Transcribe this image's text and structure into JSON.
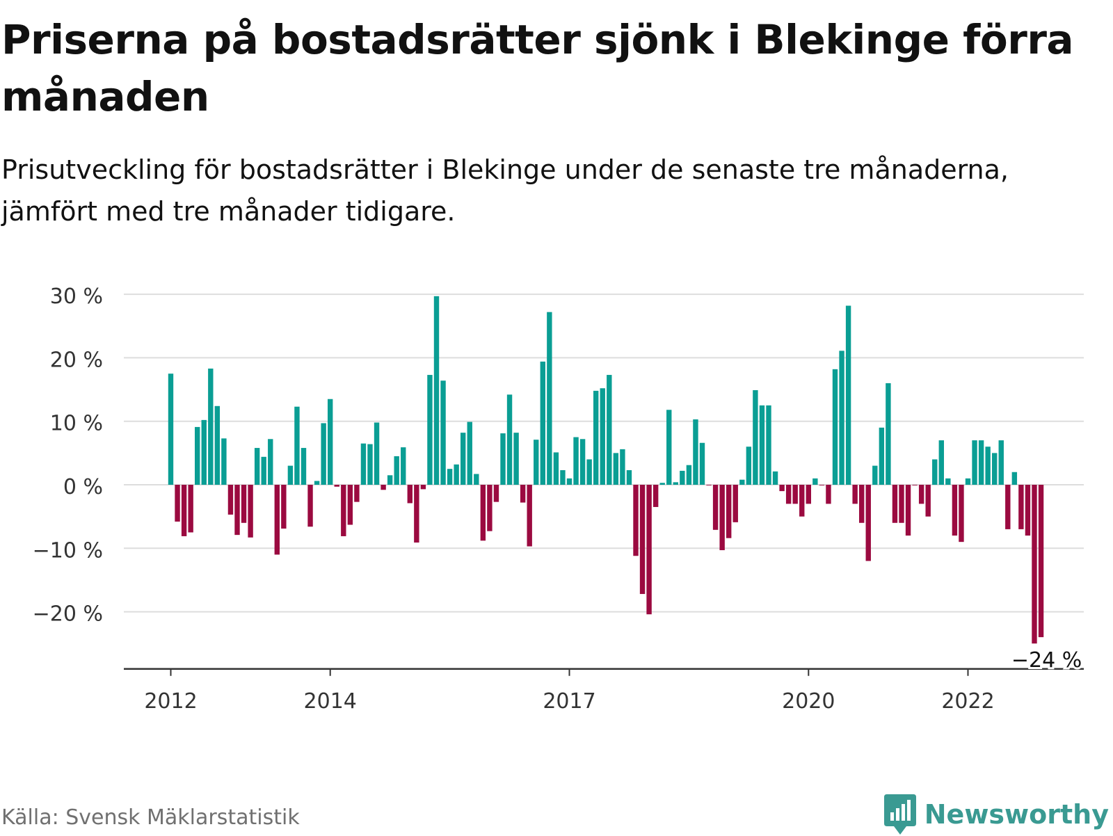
{
  "header": {
    "title": "Priserna på bostadsrätter sjönk i Blekinge förra månaden",
    "subtitle": "Prisutveckling för bostadsrätter i Blekinge under de senaste tre månaderna, jämfört med tre månader tidigare."
  },
  "footer": {
    "source": "Källa: Svensk Mäklarstatistik",
    "brand": "Newsworthy",
    "brand_icon": "newsworthy-logo-icon"
  },
  "colors": {
    "positive": "#0a9e94",
    "negative": "#9b0a40",
    "grid": "#dddddd",
    "axis": "#333333",
    "brand": "#3a9a92"
  },
  "chart_data": {
    "type": "bar",
    "unit": "%",
    "ylim": [
      -29,
      31
    ],
    "yticks": [
      30,
      20,
      10,
      0,
      -10,
      -20
    ],
    "ytick_labels": [
      "30 %",
      "20 %",
      "10 %",
      "0 %",
      "−10 %",
      "−20 %"
    ],
    "xtick_labels": [
      "2012",
      "2014",
      "2017",
      "2020",
      "2022"
    ],
    "xtick_bar_index": [
      0,
      24,
      60,
      96,
      120
    ],
    "grid": true,
    "annotation": {
      "text": "−24 %",
      "bar_index": 131
    },
    "values": [
      17.5,
      -5.8,
      -8.1,
      -7.5,
      9.1,
      10.2,
      18.3,
      12.4,
      7.3,
      -4.7,
      -7.9,
      -6.0,
      -8.3,
      5.8,
      4.4,
      7.2,
      -11.0,
      -6.9,
      3.0,
      12.3,
      5.8,
      -6.6,
      0.6,
      9.7,
      13.5,
      -0.3,
      -8.1,
      -6.3,
      -2.7,
      6.5,
      6.4,
      9.8,
      -0.8,
      1.5,
      4.5,
      5.9,
      -2.9,
      -9.1,
      -0.7,
      17.3,
      29.7,
      16.4,
      2.5,
      3.2,
      8.2,
      9.9,
      1.7,
      -8.8,
      -7.3,
      -2.7,
      8.1,
      14.2,
      8.2,
      -2.8,
      -9.7,
      7.1,
      19.4,
      27.2,
      5.1,
      2.3,
      1.0,
      7.5,
      7.2,
      4.0,
      14.8,
      15.2,
      17.3,
      5.0,
      5.6,
      2.3,
      -11.2,
      -17.2,
      -20.4,
      -3.5,
      0.3,
      11.8,
      0.4,
      2.2,
      3.1,
      10.3,
      6.6,
      -0.1,
      -7.1,
      -10.3,
      -8.4,
      -5.9,
      0.8,
      6.0,
      14.9,
      12.5,
      12.5,
      2.1,
      -1.0,
      -3.0,
      -3.0,
      -5.0,
      -3.0,
      1.0,
      -0.1,
      -3.0,
      18.2,
      21.1,
      28.2,
      -3.0,
      -6.0,
      -12.0,
      3.0,
      9.0,
      16.0,
      -6.0,
      -6.0,
      -8.0,
      -0.1,
      -3.0,
      -5.0,
      4.0,
      7.0,
      1.0,
      -8.0,
      -9.0,
      1.0,
      7.0,
      7.0,
      6.0,
      5.0,
      7.0,
      -7.0,
      2.0,
      -7.0,
      -8.0,
      -25.0,
      -24.0
    ]
  }
}
